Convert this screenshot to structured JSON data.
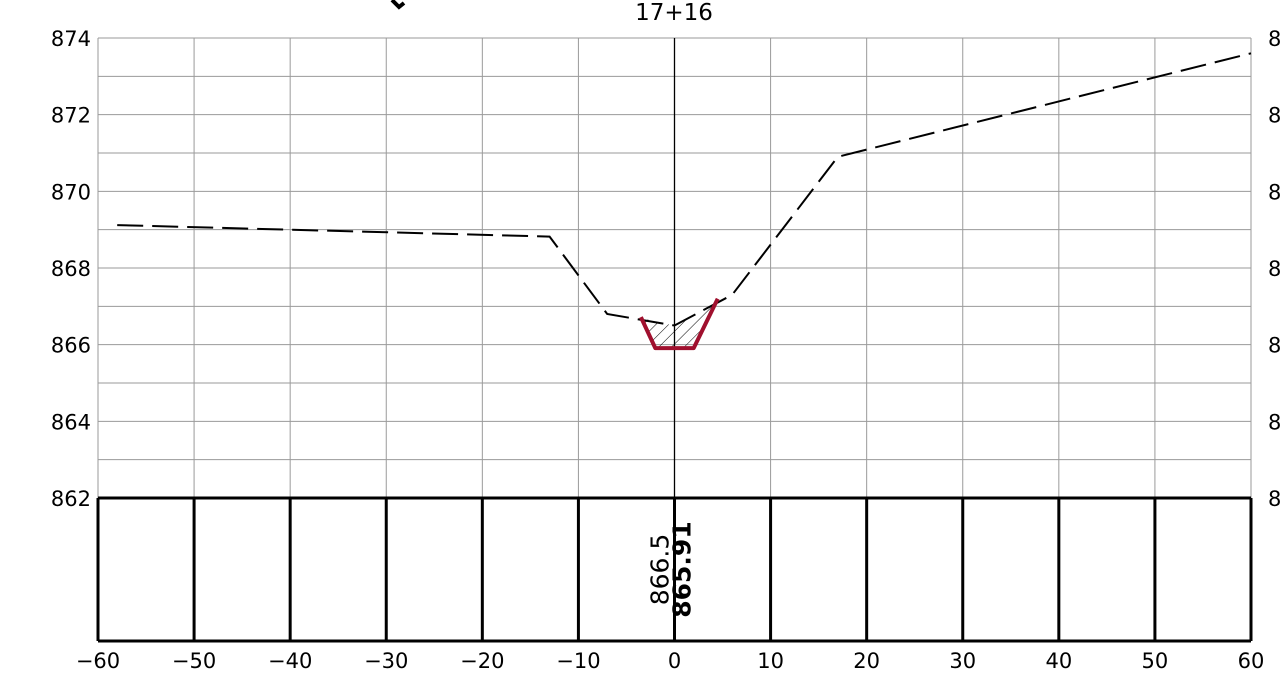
{
  "station": {
    "label": "17+16"
  },
  "chart_data": {
    "type": "cross-section",
    "title": "17+16",
    "xlim": [
      -60,
      60
    ],
    "ylim": [
      862,
      874
    ],
    "grid": true,
    "x_ticks": [
      -60,
      -50,
      -40,
      -30,
      -20,
      -10,
      0,
      10,
      20,
      30,
      40,
      50,
      60
    ],
    "x_tick_labels": [
      "−60",
      "−50",
      "−40",
      "−30",
      "−20",
      "−10",
      "0",
      "10",
      "20",
      "30",
      "40",
      "50",
      "60"
    ],
    "y_ticks": [
      862,
      864,
      866,
      868,
      870,
      872,
      874
    ],
    "y_tick_labels": [
      "862",
      "864",
      "866",
      "868",
      "870",
      "872",
      "874"
    ],
    "right_axis_labels": [
      "8",
      "8",
      "8",
      "8",
      "8",
      "8",
      "8"
    ],
    "series": [
      {
        "role": "existing-ground",
        "style": "dashed",
        "color": "#000000",
        "points": [
          [
            -58,
            869.12
          ],
          [
            -13,
            868.82
          ],
          [
            -7,
            866.8
          ],
          [
            0,
            866.5
          ],
          [
            6,
            867.3
          ],
          [
            17,
            870.9
          ],
          [
            60,
            873.6
          ]
        ]
      },
      {
        "role": "proposed-ditch",
        "style": "solid",
        "color": "#a0102e",
        "points": [
          [
            -3.5,
            866.72
          ],
          [
            -2,
            865.91
          ],
          [
            2,
            865.91
          ],
          [
            4.5,
            867.2
          ]
        ]
      }
    ],
    "hatch_region": [
      [
        -3.5,
        866.72
      ],
      [
        -2,
        865.91
      ],
      [
        2,
        865.91
      ],
      [
        4.2,
        867.07
      ],
      [
        0,
        866.5
      ],
      [
        -2,
        866.6
      ]
    ],
    "elevation_labels": [
      {
        "at_x": 0,
        "text": "866.5",
        "role": "existing"
      },
      {
        "at_x": 0,
        "text": "865.91",
        "role": "design"
      }
    ]
  }
}
